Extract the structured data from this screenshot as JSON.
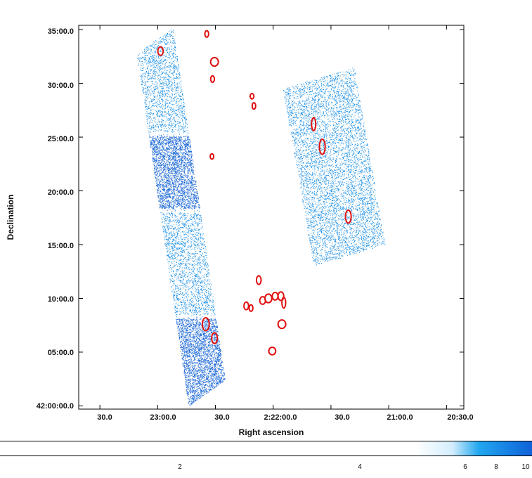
{
  "chart_data": {
    "type": "scatter",
    "title": "",
    "xlabel": "Right ascension",
    "ylabel": "Declination",
    "x_ticks": [
      {
        "label": "30.0",
        "ra_s_offset": 90
      },
      {
        "label": "23:00.0",
        "ra_s_offset": 60
      },
      {
        "label": "30.0",
        "ra_s_offset": 30
      },
      {
        "label": "2:22:00.0",
        "ra_s_offset": 0
      },
      {
        "label": "30.0",
        "ra_s_offset": -30
      },
      {
        "label": "21:00.0",
        "ra_s_offset": -60
      },
      {
        "label": "20:30.0",
        "ra_s_offset": -90
      }
    ],
    "x_range_s": [
      101,
      -99
    ],
    "y_ticks": [
      {
        "label": "35:00.0",
        "dec_arcmin": 35
      },
      {
        "label": "30:00.0",
        "dec_arcmin": 30
      },
      {
        "label": "25:00.0",
        "dec_arcmin": 25
      },
      {
        "label": "20:00.0",
        "dec_arcmin": 20
      },
      {
        "label": "15:00.0",
        "dec_arcmin": 15
      },
      {
        "label": "10:00.0",
        "dec_arcmin": 10
      },
      {
        "label": "05:00.0",
        "dec_arcmin": 5
      },
      {
        "label": "42:00:00.0",
        "dec_arcmin": 0
      }
    ],
    "y_range_arcmin": [
      -0.3,
      35.4
    ],
    "regions": [
      {
        "name": "left-strip",
        "corners": [
          [
            71,
            32.8
          ],
          [
            52,
            35.2
          ],
          [
            25,
            2.4
          ],
          [
            44,
            0
          ]
        ],
        "bands": [
          {
            "dec_from": 25.3,
            "dec_to": 32.8,
            "density": "low"
          },
          {
            "dec_from": 18.2,
            "dec_to": 25.3,
            "density": "high"
          },
          {
            "dec_from": 8.3,
            "dec_to": 18.2,
            "density": "low"
          },
          {
            "dec_from": 0,
            "dec_to": 8.3,
            "density": "high"
          }
        ]
      },
      {
        "name": "right-strip",
        "corners": [
          [
            -5,
            29.5
          ],
          [
            -42,
            31.5
          ],
          [
            -58,
            15.2
          ],
          [
            -21,
            13
          ]
        ],
        "bands": [
          {
            "dec_from": 13,
            "dec_to": 31.5,
            "density": "low"
          }
        ]
      }
    ],
    "sources": [
      {
        "ra_s": 58.5,
        "dec": 33.0,
        "rx_s": 1.4,
        "ry": 0.4
      },
      {
        "ra_s": 34.5,
        "dec": 34.6,
        "rx_s": 1.0,
        "ry": 0.3
      },
      {
        "ra_s": 30.5,
        "dec": 32.0,
        "rx_s": 2.0,
        "ry": 0.4
      },
      {
        "ra_s": 31.5,
        "dec": 30.4,
        "rx_s": 1.0,
        "ry": 0.3
      },
      {
        "ra_s": 31.8,
        "dec": 23.2,
        "rx_s": 0.6,
        "ry": 0.25
      },
      {
        "ra_s": 11.0,
        "dec": 28.8,
        "rx_s": 1.0,
        "ry": 0.25
      },
      {
        "ra_s": 10.0,
        "dec": 27.9,
        "rx_s": 0.6,
        "ry": 0.3
      },
      {
        "ra_s": -21.0,
        "dec": 26.2,
        "rx_s": 1.1,
        "ry": 0.6
      },
      {
        "ra_s": -25.5,
        "dec": 24.1,
        "rx_s": 1.5,
        "ry": 0.7
      },
      {
        "ra_s": -39.0,
        "dec": 17.6,
        "rx_s": 1.5,
        "ry": 0.6
      },
      {
        "ra_s": 7.5,
        "dec": 11.7,
        "rx_s": 1.2,
        "ry": 0.4
      },
      {
        "ra_s": 35.0,
        "dec": 7.6,
        "rx_s": 1.8,
        "ry": 0.6
      },
      {
        "ra_s": 30.5,
        "dec": 6.3,
        "rx_s": 1.5,
        "ry": 0.5
      },
      {
        "ra_s": 14.0,
        "dec": 9.3,
        "rx_s": 1.2,
        "ry": 0.35
      },
      {
        "ra_s": 11.5,
        "dec": 9.1,
        "rx_s": 1.0,
        "ry": 0.3
      },
      {
        "ra_s": 5.5,
        "dec": 9.8,
        "rx_s": 1.5,
        "ry": 0.35
      },
      {
        "ra_s": 2.5,
        "dec": 10.0,
        "rx_s": 1.8,
        "ry": 0.4
      },
      {
        "ra_s": -1.0,
        "dec": 10.2,
        "rx_s": 1.5,
        "ry": 0.35
      },
      {
        "ra_s": -4.0,
        "dec": 10.2,
        "rx_s": 1.5,
        "ry": 0.4
      },
      {
        "ra_s": -5.5,
        "dec": 9.6,
        "rx_s": 1.0,
        "ry": 0.5
      },
      {
        "ra_s": -4.5,
        "dec": 7.6,
        "rx_s": 2.0,
        "ry": 0.4
      },
      {
        "ra_s": 0.5,
        "dec": 5.1,
        "rx_s": 1.8,
        "ry": 0.35
      }
    ],
    "colorbar": {
      "ticks": [
        {
          "label": "2",
          "value": 2
        },
        {
          "label": "4",
          "value": 4
        },
        {
          "label": "6",
          "value": 6
        },
        {
          "label": "8",
          "value": 8
        },
        {
          "label": "10",
          "value": 10
        }
      ],
      "colors": [
        "#ffffff",
        "#e6f5ff",
        "#22a7f0",
        "#0f62d8"
      ]
    },
    "colors": {
      "low_density": "#1a8fe6",
      "high_density": "#1866d6",
      "region": "#e01010",
      "frame": "#000000"
    }
  }
}
